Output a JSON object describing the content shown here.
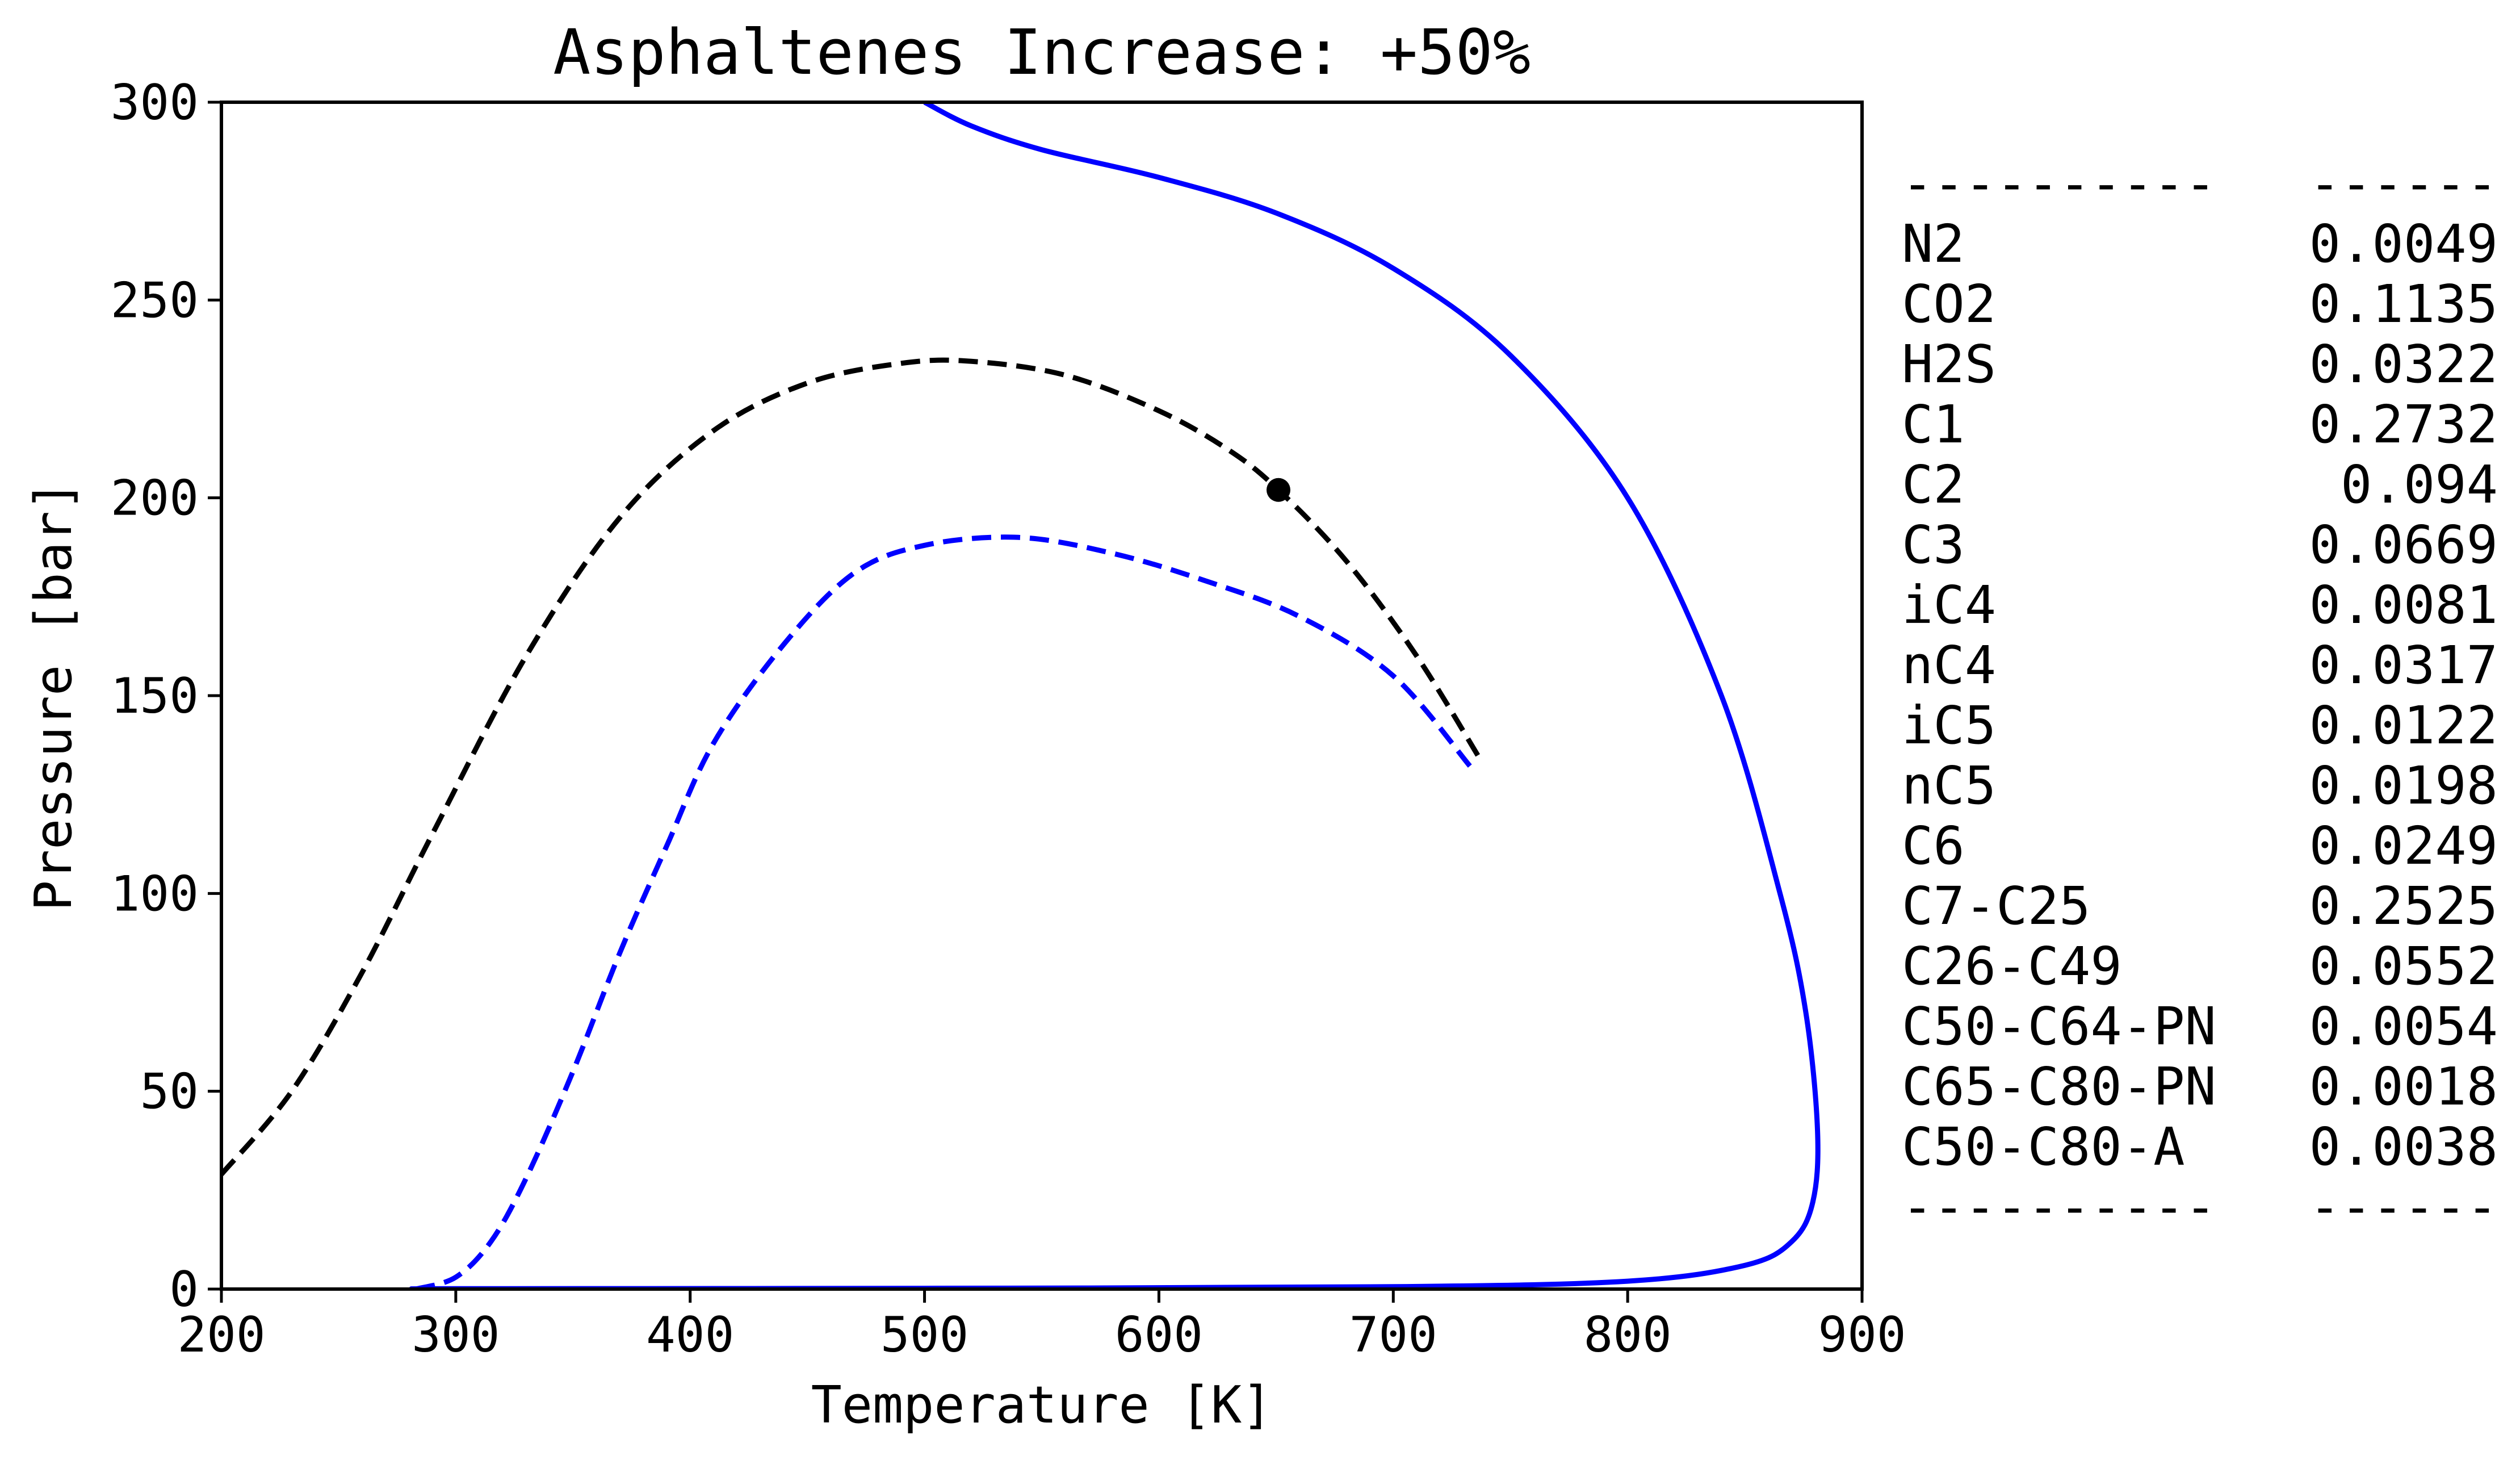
{
  "chart_data": {
    "type": "line",
    "title": "Asphaltenes Increase: +50%",
    "xlabel": "Temperature [K]",
    "ylabel": "Pressure [bar]",
    "xlim": [
      200,
      900
    ],
    "ylim": [
      0,
      300
    ],
    "x_ticks": [
      200,
      300,
      400,
      500,
      600,
      700,
      800,
      900
    ],
    "y_ticks": [
      0,
      50,
      100,
      150,
      200,
      250,
      300
    ],
    "grid": false,
    "series": [
      {
        "style": "solid",
        "color": "#0000ff",
        "points": [
          [
            500,
            300
          ],
          [
            520,
            294
          ],
          [
            550,
            288
          ],
          [
            600,
            281
          ],
          [
            650,
            272
          ],
          [
            700,
            258
          ],
          [
            750,
            236
          ],
          [
            800,
            200
          ],
          [
            840,
            150
          ],
          [
            865,
            100
          ],
          [
            876,
            70
          ],
          [
            881,
            40
          ],
          [
            879,
            22
          ],
          [
            870,
            12
          ],
          [
            850,
            6
          ],
          [
            800,
            2
          ],
          [
            700,
            0.6
          ],
          [
            500,
            0.2
          ],
          [
            300,
            0.1
          ],
          [
            288,
            0
          ]
        ]
      },
      {
        "style": "dashed",
        "color": "#000000",
        "points": [
          [
            200,
            29
          ],
          [
            230,
            50
          ],
          [
            260,
            80
          ],
          [
            290,
            115
          ],
          [
            330,
            160
          ],
          [
            370,
            195
          ],
          [
            410,
            217
          ],
          [
            450,
            229
          ],
          [
            490,
            234
          ],
          [
            520,
            234.5
          ],
          [
            560,
            231
          ],
          [
            600,
            222
          ],
          [
            630,
            212
          ],
          [
            651,
            202
          ],
          [
            680,
            184
          ],
          [
            710,
            160
          ],
          [
            738,
            133
          ]
        ]
      },
      {
        "style": "dashed",
        "color": "#0000ff",
        "points": [
          [
            283,
            0
          ],
          [
            300,
            3
          ],
          [
            315,
            12
          ],
          [
            330,
            28
          ],
          [
            350,
            55
          ],
          [
            370,
            85
          ],
          [
            390,
            112
          ],
          [
            410,
            138
          ],
          [
            440,
            163
          ],
          [
            470,
            181
          ],
          [
            500,
            188
          ],
          [
            540,
            190
          ],
          [
            580,
            186
          ],
          [
            620,
            179
          ],
          [
            660,
            170
          ],
          [
            700,
            155
          ],
          [
            733,
            132
          ]
        ]
      }
    ],
    "marker": {
      "x": 651,
      "y": 202,
      "color": "#000000"
    },
    "table": {
      "separator_left": "----------",
      "separator_right": "------",
      "rows": [
        {
          "component": "N2",
          "value": "0.0049"
        },
        {
          "component": "CO2",
          "value": "0.1135"
        },
        {
          "component": "H2S",
          "value": "0.0322"
        },
        {
          "component": "C1",
          "value": "0.2732"
        },
        {
          "component": "C2",
          "value": "0.094"
        },
        {
          "component": "C3",
          "value": "0.0669"
        },
        {
          "component": "iC4",
          "value": "0.0081"
        },
        {
          "component": "nC4",
          "value": "0.0317"
        },
        {
          "component": "iC5",
          "value": "0.0122"
        },
        {
          "component": "nC5",
          "value": "0.0198"
        },
        {
          "component": "C6",
          "value": "0.0249"
        },
        {
          "component": "C7-C25",
          "value": "0.2525"
        },
        {
          "component": "C26-C49",
          "value": "0.0552"
        },
        {
          "component": "C50-C64-PN",
          "value": "0.0054"
        },
        {
          "component": "C65-C80-PN",
          "value": "0.0018"
        },
        {
          "component": "C50-C80-A",
          "value": "0.0038"
        }
      ]
    }
  }
}
